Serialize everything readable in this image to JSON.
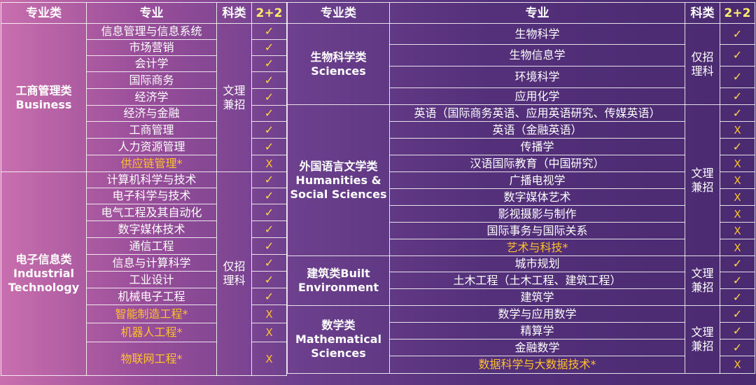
{
  "headers": {
    "category": "专业类",
    "major": "专业",
    "subject": "科类",
    "two_plus_two": "2+2"
  },
  "left": {
    "groups": [
      {
        "cn": "工商管理类",
        "en": "Business",
        "subject": "文理兼招",
        "rows": [
          {
            "major": "信息管理与信息系统",
            "mark": "✓",
            "highlight": false
          },
          {
            "major": "市场营销",
            "mark": "✓",
            "highlight": false
          },
          {
            "major": "会计学",
            "mark": "✓",
            "highlight": false
          },
          {
            "major": "国际商务",
            "mark": "✓",
            "highlight": false
          },
          {
            "major": "经济学",
            "mark": "✓",
            "highlight": false
          },
          {
            "major": "经济与金融",
            "mark": "✓",
            "highlight": false
          },
          {
            "major": "工商管理",
            "mark": "✓",
            "highlight": false
          },
          {
            "major": "人力资源管理",
            "mark": "✓",
            "highlight": false
          },
          {
            "major": "供应链管理*",
            "mark": "X",
            "highlight": true
          }
        ]
      },
      {
        "cn": "电子信息类",
        "en": "Industrial Technology",
        "subject": "仅招理科",
        "rows": [
          {
            "major": "计算机科学与技术",
            "mark": "✓",
            "highlight": false
          },
          {
            "major": "电子科学与技术",
            "mark": "✓",
            "highlight": false
          },
          {
            "major": "电气工程及其自动化",
            "mark": "✓",
            "highlight": false
          },
          {
            "major": "数字媒体技术",
            "mark": "✓",
            "highlight": false
          },
          {
            "major": "通信工程",
            "mark": "✓",
            "highlight": false
          },
          {
            "major": "信息与计算科学",
            "mark": "✓",
            "highlight": false
          },
          {
            "major": "工业设计",
            "mark": "✓",
            "highlight": false
          },
          {
            "major": "机械电子工程",
            "mark": "✓",
            "highlight": false
          },
          {
            "major": "智能制造工程*",
            "mark": "X",
            "highlight": true
          },
          {
            "major": "机器人工程*",
            "mark": "X",
            "highlight": true
          },
          {
            "major": "物联网工程*",
            "mark": "X",
            "highlight": true
          }
        ]
      }
    ]
  },
  "right": {
    "groups": [
      {
        "cn": "生物科学类",
        "en": "Sciences",
        "subjects": [
          {
            "text": "仅招理科",
            "span": 4
          }
        ],
        "rows": [
          {
            "major": "生物科学",
            "mark": "✓",
            "highlight": false
          },
          {
            "major": "生物信息学",
            "mark": "✓",
            "highlight": false
          },
          {
            "major": "环境科学",
            "mark": "✓",
            "highlight": false
          },
          {
            "major": "应用化学",
            "mark": "✓",
            "highlight": false
          }
        ]
      },
      {
        "cn": "外国语言文学类",
        "en": "Humanities & Social Sciences",
        "subjects": [
          {
            "text": "文理兼招",
            "span": 9
          }
        ],
        "rows": [
          {
            "major": "英语（国际商务英语、应用英语研究、传媒英语）",
            "mark": "✓",
            "highlight": false
          },
          {
            "major": "英语（金融英语）",
            "mark": "X",
            "highlight": false
          },
          {
            "major": "传播学",
            "mark": "✓",
            "highlight": false
          },
          {
            "major": "汉语国际教育（中国研究）",
            "mark": "X",
            "highlight": false
          },
          {
            "major": "广播电视学",
            "mark": "X",
            "highlight": false
          },
          {
            "major": "数字媒体艺术",
            "mark": "X",
            "highlight": false
          },
          {
            "major": "影视摄影与制作",
            "mark": "X",
            "highlight": false
          },
          {
            "major": "国际事务与国际关系",
            "mark": "X",
            "highlight": false
          },
          {
            "major": "艺术与科技*",
            "mark": "X",
            "highlight": true
          }
        ]
      },
      {
        "cn": "建筑类Built",
        "en": "Environment",
        "subjects": [
          {
            "text": "文理兼招",
            "span": 3
          }
        ],
        "rows": [
          {
            "major": "城市规划",
            "mark": "✓",
            "highlight": false
          },
          {
            "major": "土木工程（土木工程、建筑工程）",
            "mark": "✓",
            "highlight": false
          },
          {
            "major": "建筑学",
            "mark": "✓",
            "highlight": false
          }
        ]
      },
      {
        "cn": "数学类",
        "en": "Mathematical Sciences",
        "subjects": [
          {
            "text": "文理兼招",
            "span": 4
          }
        ],
        "rows": [
          {
            "major": "数学与应用数学",
            "mark": "✓",
            "highlight": false
          },
          {
            "major": "精算学",
            "mark": "✓",
            "highlight": false
          },
          {
            "major": "金融数学",
            "mark": "✓",
            "highlight": false
          },
          {
            "major": "数据科学与大数据技术*",
            "mark": "X",
            "highlight": true
          }
        ]
      }
    ]
  }
}
